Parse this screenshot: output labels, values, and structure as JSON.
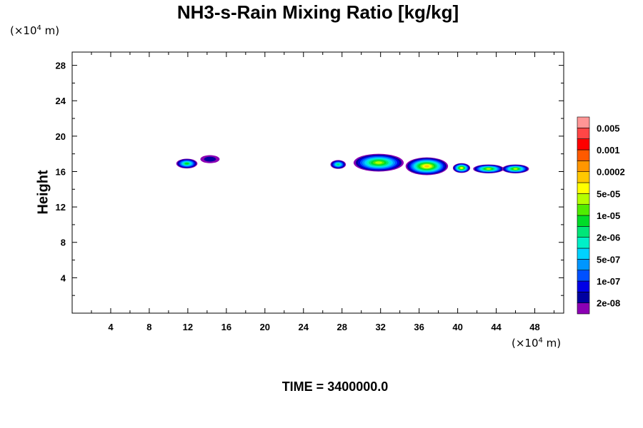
{
  "chart_data": {
    "type": "heatmap",
    "title": "NH3-s-Rain Mixing Ratio [kg/kg]",
    "xlabel": "",
    "ylabel": "Height",
    "x_unit": "(×10",
    "y_unit": "(×10",
    "unit_exp": "4",
    "unit_suffix": " m)",
    "time_label": "TIME = 3400000.0",
    "xlim": [
      0,
      51
    ],
    "ylim": [
      0,
      29.5
    ],
    "xticks": [
      4,
      8,
      12,
      16,
      20,
      24,
      28,
      32,
      36,
      40,
      44,
      48
    ],
    "yticks": [
      4,
      8,
      12,
      16,
      20,
      24,
      28
    ],
    "colorbar": {
      "colors": [
        "#8c00b4",
        "#0000a0",
        "#0000e6",
        "#0050ff",
        "#0096ff",
        "#00d2ff",
        "#00f0c8",
        "#00e678",
        "#00dc28",
        "#50ec00",
        "#b4ff00",
        "#ffff00",
        "#ffc800",
        "#ff9600",
        "#ff5a00",
        "#ff0000",
        "#ff4646",
        "#ff9696"
      ],
      "labels": [
        "2e-08",
        "1e-07",
        "5e-07",
        "2e-06",
        "1e-05",
        "5e-05",
        "0.0002",
        "0.001",
        "0.005"
      ]
    },
    "cells": [
      {
        "x": 11.9,
        "y": 16.9,
        "rx": 1.1,
        "ry": 0.55,
        "level": 8
      },
      {
        "x": 14.3,
        "y": 17.4,
        "rx": 1.0,
        "ry": 0.45,
        "level": 1
      },
      {
        "x": 27.6,
        "y": 16.8,
        "rx": 0.8,
        "ry": 0.5,
        "level": 7
      },
      {
        "x": 31.8,
        "y": 17.0,
        "rx": 2.6,
        "ry": 1.0,
        "level": 10
      },
      {
        "x": 36.8,
        "y": 16.6,
        "rx": 2.2,
        "ry": 1.0,
        "level": 12
      },
      {
        "x": 40.4,
        "y": 16.4,
        "rx": 0.9,
        "ry": 0.55,
        "level": 11
      },
      {
        "x": 43.2,
        "y": 16.3,
        "rx": 1.6,
        "ry": 0.5,
        "level": 10
      },
      {
        "x": 46.0,
        "y": 16.3,
        "rx": 1.4,
        "ry": 0.5,
        "level": 10
      }
    ]
  }
}
